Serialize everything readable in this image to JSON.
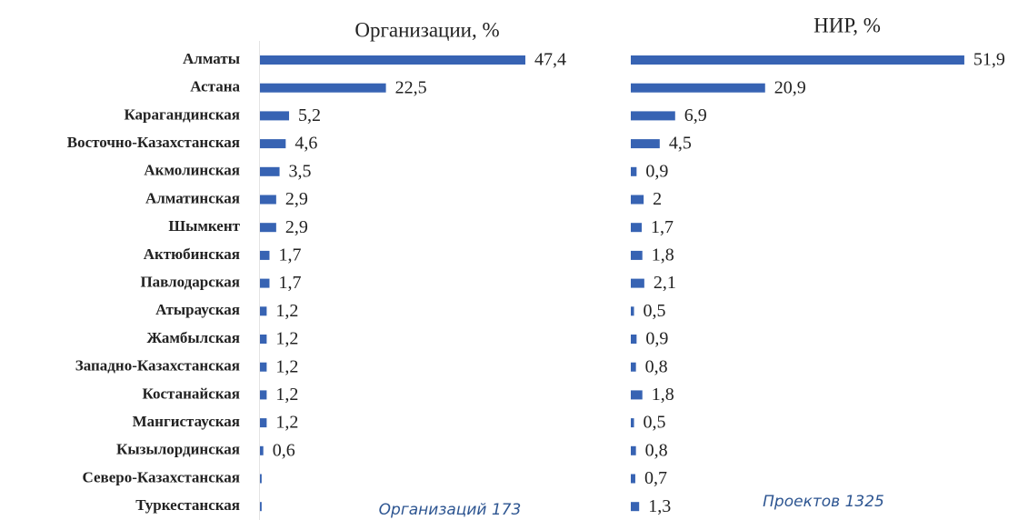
{
  "chart_data": [
    {
      "type": "bar",
      "orientation": "horizontal",
      "title": "Организации, %",
      "annotation": "Организаций 173",
      "color": "#3763b3",
      "categories": [
        "Алматы",
        "Астана",
        "Карагандинская",
        "Восточно-Казахстанская",
        "Акмолинская",
        "Алматинская",
        "Шымкент",
        "Актюбинская",
        "Павлодарская",
        "Атырауская",
        "Жамбылская",
        "Западно-Казахстанская",
        "Костанайская",
        "Мангистауская",
        "Кызылординская",
        "Северо-Казахстанская",
        "Туркестанская"
      ],
      "values": [
        47.4,
        22.5,
        5.2,
        4.6,
        3.5,
        2.9,
        2.9,
        1.7,
        1.7,
        1.2,
        1.2,
        1.2,
        1.2,
        1.2,
        0.6,
        0.3,
        0.3
      ],
      "value_labels": [
        "47,4",
        "22,5",
        "5,2",
        "4,6",
        "3,5",
        "2,9",
        "2,9",
        "1,7",
        "1,7",
        "1,2",
        "1,2",
        "1,2",
        "1,2",
        "1,2",
        "0,6",
        null,
        null
      ]
    },
    {
      "type": "bar",
      "orientation": "horizontal",
      "title": "НИР, %",
      "annotation": "Проектов 1325",
      "color": "#3763b3",
      "values": [
        51.9,
        20.9,
        6.9,
        4.5,
        0.9,
        2,
        1.7,
        1.8,
        2.1,
        0.5,
        0.9,
        0.8,
        1.8,
        0.5,
        0.8,
        0.7,
        1.3
      ],
      "value_labels": [
        "51,9",
        "20,9",
        "6,9",
        "4,5",
        "0,9",
        "2",
        "1,7",
        "1,8",
        "2,1",
        "0,5",
        "0,9",
        "0,8",
        "1,8",
        "0,5",
        "0,8",
        "0,7",
        "1,3"
      ]
    }
  ]
}
